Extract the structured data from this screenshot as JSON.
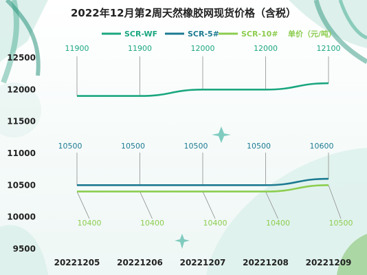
{
  "chart_data": {
    "type": "line",
    "title": "2022年12月第2周天然橡胶网现货价格（含税）",
    "unit_label": "单价（元/吨）",
    "categories": [
      "20221205",
      "20221206",
      "20221207",
      "20221208",
      "20221209"
    ],
    "ylim": [
      9500,
      12500
    ],
    "yticks": [
      9500,
      10000,
      10500,
      11000,
      11500,
      12000,
      12500
    ],
    "grid": false,
    "legend_position": "top",
    "series": [
      {
        "name": "SCR-WF",
        "color": "#1aa67f",
        "values": [
          11900,
          11900,
          12000,
          12000,
          12100
        ]
      },
      {
        "name": "SCR-5#",
        "color": "#1c7a91",
        "values": [
          10500,
          10500,
          10500,
          10500,
          10600
        ]
      },
      {
        "name": "SCR-10#",
        "color": "#8ccd4e",
        "values": [
          10400,
          10400,
          10400,
          10400,
          10500
        ]
      }
    ]
  }
}
